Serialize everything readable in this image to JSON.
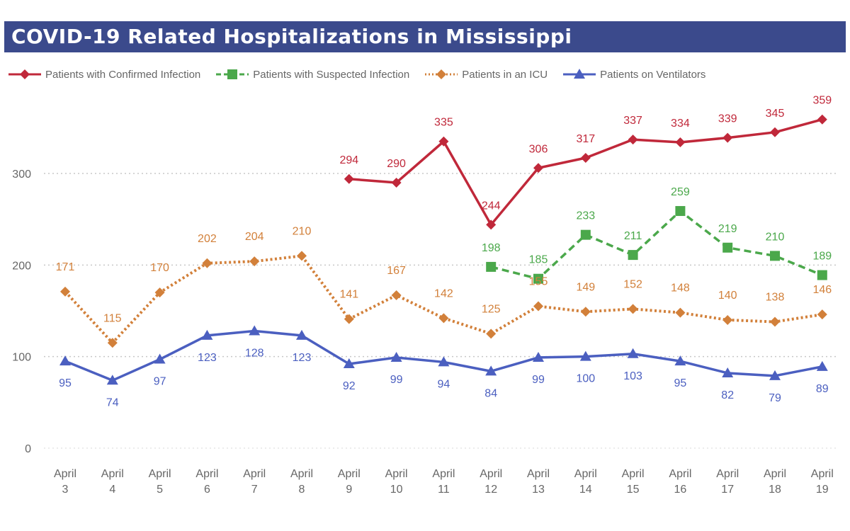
{
  "header": {
    "title": "COVID-19 Related Hospitalizations in Mississippi"
  },
  "legend": [
    {
      "label": "Patients with Confirmed Infection",
      "color": "#c0283a",
      "marker": "diamond",
      "dash": "solid"
    },
    {
      "label": "Patients with Suspected Infection",
      "color": "#4ba84b",
      "marker": "square",
      "dash": "dashed"
    },
    {
      "label": "Patients in an ICU",
      "color": "#d2803a",
      "marker": "diamond",
      "dash": "dotted"
    },
    {
      "label": "Patients on Ventilators",
      "color": "#4b5fc0",
      "marker": "triangle",
      "dash": "solid"
    }
  ],
  "chart_data": {
    "type": "line",
    "title": "COVID-19 Related Hospitalizations in Mississippi",
    "categories": [
      [
        "April",
        "3"
      ],
      [
        "April",
        "4"
      ],
      [
        "April",
        "5"
      ],
      [
        "April",
        "6"
      ],
      [
        "April",
        "7"
      ],
      [
        "April",
        "8"
      ],
      [
        "April",
        "9"
      ],
      [
        "April",
        "10"
      ],
      [
        "April",
        "11"
      ],
      [
        "April",
        "12"
      ],
      [
        "April",
        "13"
      ],
      [
        "April",
        "14"
      ],
      [
        "April",
        "15"
      ],
      [
        "April",
        "16"
      ],
      [
        "April",
        "17"
      ],
      [
        "April",
        "18"
      ],
      [
        "April",
        "19"
      ]
    ],
    "yticks": [
      0,
      100,
      200,
      300
    ],
    "ylim": [
      0,
      380
    ],
    "grid": "horizontal dotted",
    "legend_position": "top",
    "series": [
      {
        "name": "Patients with Confirmed Infection",
        "color": "#c0283a",
        "marker": "diamond",
        "dash": "solid",
        "values": [
          null,
          null,
          null,
          null,
          null,
          null,
          294,
          290,
          335,
          244,
          306,
          317,
          337,
          334,
          339,
          345,
          359
        ]
      },
      {
        "name": "Patients with Suspected Infection",
        "color": "#4ba84b",
        "marker": "square",
        "dash": "dashed",
        "values": [
          null,
          null,
          null,
          null,
          null,
          null,
          null,
          null,
          null,
          198,
          185,
          233,
          211,
          259,
          219,
          210,
          189
        ]
      },
      {
        "name": "Patients in an ICU",
        "color": "#d2803a",
        "marker": "diamond",
        "dash": "dotted",
        "values": [
          171,
          115,
          170,
          202,
          204,
          210,
          141,
          167,
          142,
          125,
          155,
          149,
          152,
          148,
          140,
          138,
          146
        ]
      },
      {
        "name": "Patients on Ventilators",
        "color": "#4b5fc0",
        "marker": "triangle",
        "dash": "solid",
        "values": [
          95,
          74,
          97,
          123,
          128,
          123,
          92,
          99,
          94,
          84,
          99,
          100,
          103,
          95,
          82,
          79,
          89
        ]
      }
    ]
  }
}
